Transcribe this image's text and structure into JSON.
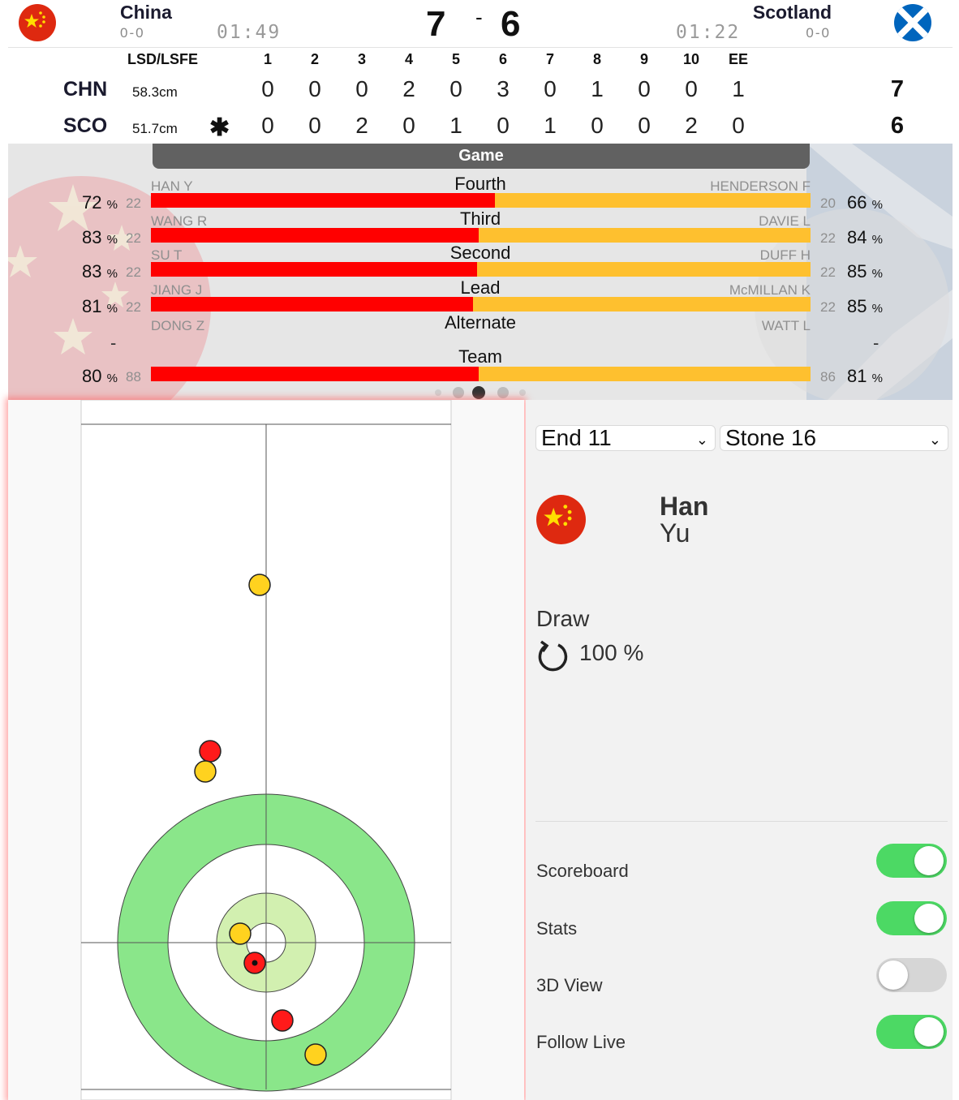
{
  "header": {
    "home": {
      "name": "China",
      "record": "0-0",
      "clock": "01:49",
      "score": "7"
    },
    "away": {
      "name": "Scotland",
      "record": "0-0",
      "clock": "01:22",
      "score": "6"
    },
    "score_separator": "-"
  },
  "linescore": {
    "lsd_header": "LSD/LSFE",
    "end_headers": [
      "1",
      "2",
      "3",
      "4",
      "5",
      "6",
      "7",
      "8",
      "9",
      "10",
      "EE"
    ],
    "hammer_symbol": "✱",
    "rows": [
      {
        "abbr": "CHN",
        "lsd": "58.3cm",
        "ends": [
          "0",
          "0",
          "0",
          "2",
          "0",
          "3",
          "0",
          "1",
          "0",
          "0",
          "1"
        ],
        "total": "7"
      },
      {
        "abbr": "SCO",
        "lsd": "51.7cm",
        "ends": [
          "0",
          "0",
          "2",
          "0",
          "1",
          "0",
          "1",
          "0",
          "0",
          "2",
          "0"
        ],
        "total": "6"
      }
    ]
  },
  "stats": {
    "tab_label": "Game",
    "pct_symbol": "%",
    "rows": [
      {
        "position": "Fourth",
        "left_player": "HAN Y",
        "left_pct": "72",
        "left_shots": "22",
        "right_player": "HENDERSON F",
        "right_pct": "66",
        "right_shots": "20",
        "left_share": 0.522
      },
      {
        "position": "Third",
        "left_player": "WANG R",
        "left_pct": "83",
        "left_shots": "22",
        "right_player": "DAVIE L",
        "right_pct": "84",
        "right_shots": "22",
        "left_share": 0.497
      },
      {
        "position": "Second",
        "left_player": "SU T",
        "left_pct": "83",
        "left_shots": "22",
        "right_player": "DUFF H",
        "right_pct": "85",
        "right_shots": "22",
        "left_share": 0.494
      },
      {
        "position": "Lead",
        "left_player": "JIANG J",
        "left_pct": "81",
        "left_shots": "22",
        "right_player": "McMILLAN K",
        "right_pct": "85",
        "right_shots": "22",
        "left_share": 0.488
      },
      {
        "position": "Alternate",
        "left_player": "DONG Z",
        "left_pct": "-",
        "right_player": "WATT L",
        "right_pct": "-"
      },
      {
        "position": "Team",
        "left_pct": "80",
        "left_shots": "88",
        "right_pct": "81",
        "right_shots": "86",
        "left_share": 0.497
      }
    ],
    "pager": {
      "count": 5,
      "active": 2
    }
  },
  "colors": {
    "china_red": "#ff0000",
    "scotland_yellow": "#fec02f",
    "house_outer": "#8ae68a",
    "house_inner": "#d2f0b0",
    "toggle_on": "#4cd964",
    "toggle_off": "#d6d6d6"
  },
  "selectors": {
    "end": "End 11",
    "stone": "Stone 16"
  },
  "thrower": {
    "first": "Han",
    "last": "Yu",
    "shot_type": "Draw",
    "rotation_icon": "clockwise-rotation-icon",
    "shot_pct": "100 %"
  },
  "toggles": [
    {
      "label": "Scoreboard",
      "on": true
    },
    {
      "label": "Stats",
      "on": true
    },
    {
      "label": "3D View",
      "on": false
    },
    {
      "label": "Follow Live",
      "on": true
    }
  ]
}
